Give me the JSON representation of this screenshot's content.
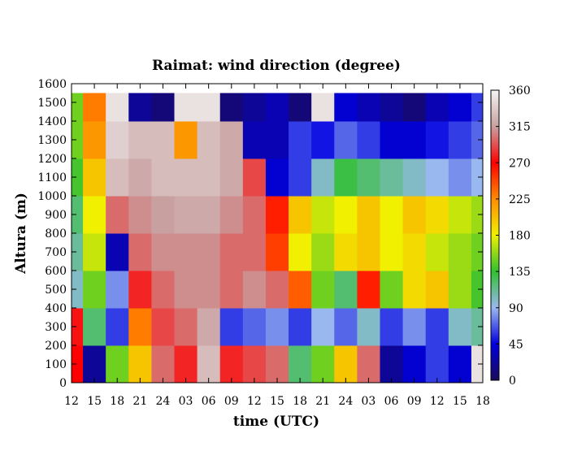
{
  "chart_data": {
    "type": "heatmap",
    "title": "Raimat: wind direction (degree)",
    "xlabel": "time (UTC)",
    "ylabel": "Altura (m)",
    "x_ticks": [
      "12",
      "15",
      "18",
      "21",
      "24",
      "03",
      "06",
      "09",
      "12",
      "15",
      "18",
      "21",
      "24",
      "03",
      "06",
      "09",
      "12",
      "15",
      "18"
    ],
    "xlim_hours": [
      0,
      54
    ],
    "y_ticks": [
      0,
      100,
      200,
      300,
      400,
      500,
      600,
      700,
      800,
      900,
      1000,
      1100,
      1200,
      1300,
      1400,
      1500,
      1600
    ],
    "ylim": [
      0,
      1600
    ],
    "data_top_altitude": 1550,
    "colorbar": {
      "range": [
        0,
        360
      ],
      "ticks": [
        0,
        45,
        90,
        135,
        180,
        225,
        270,
        315,
        360
      ],
      "colors": [
        "#1a0a5a",
        "#0000e0",
        "#9ab8f0",
        "#30c030",
        "#f0f000",
        "#ff8c00",
        "#ff0000",
        "#c8a0a0",
        "#f4f4f4"
      ]
    },
    "approx_direction_grid": {
      "x_hours": [
        0,
        3,
        6,
        9,
        12,
        15,
        18,
        21,
        24,
        27,
        30,
        33,
        36,
        39,
        42,
        45,
        48,
        51,
        54
      ],
      "altitudes_m": [
        100,
        300,
        500,
        700,
        900,
        1100,
        1300,
        1500
      ],
      "rows": [
        [
          270,
          20,
          150,
          200,
          300,
          280,
          330,
          280,
          290,
          300,
          120,
          150,
          200,
          300,
          20,
          40,
          60,
          40,
          350
        ],
        [
          275,
          120,
          60,
          230,
          290,
          300,
          320,
          60,
          70,
          80,
          60,
          90,
          70,
          100,
          60,
          80,
          60,
          100,
          110
        ],
        [
          100,
          150,
          80,
          280,
          300,
          310,
          310,
          300,
          310,
          300,
          240,
          150,
          120,
          260,
          150,
          190,
          200,
          160,
          140
        ],
        [
          110,
          170,
          30,
          300,
          310,
          310,
          310,
          300,
          300,
          250,
          180,
          160,
          190,
          200,
          180,
          190,
          170,
          160,
          150
        ],
        [
          120,
          180,
          300,
          310,
          315,
          320,
          320,
          310,
          300,
          260,
          200,
          170,
          180,
          200,
          180,
          200,
          190,
          170,
          160
        ],
        [
          140,
          200,
          330,
          320,
          330,
          330,
          330,
          320,
          290,
          40,
          60,
          100,
          130,
          120,
          110,
          100,
          90,
          80,
          90
        ],
        [
          150,
          220,
          340,
          330,
          330,
          220,
          330,
          320,
          30,
          30,
          60,
          50,
          70,
          60,
          40,
          40,
          50,
          60,
          70
        ],
        [
          150,
          230,
          350,
          20,
          10,
          350,
          350,
          10,
          20,
          30,
          10,
          350,
          40,
          30,
          20,
          10,
          30,
          40,
          60
        ]
      ]
    }
  }
}
